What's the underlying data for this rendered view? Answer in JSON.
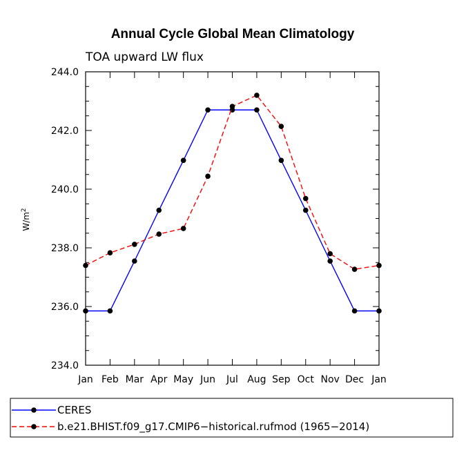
{
  "chart_data": {
    "type": "line",
    "title": "Annual Cycle Global Mean Climatology",
    "subtitle": "TOA upward LW flux",
    "ylabel": "W/m",
    "ylabel_sup": "2",
    "xlabel": "",
    "ylim": [
      234.0,
      244.0
    ],
    "yticks": [
      "234.0",
      "236.0",
      "238.0",
      "240.0",
      "242.0",
      "244.0"
    ],
    "categories": [
      "Jan",
      "Feb",
      "Mar",
      "Apr",
      "May",
      "Jun",
      "Jul",
      "Aug",
      "Sep",
      "Oct",
      "Nov",
      "Dec",
      "Jan"
    ],
    "series": [
      {
        "name": "CERES",
        "color": "#0000ff",
        "dash": "solid",
        "values": [
          235.85,
          235.85,
          237.55,
          239.28,
          240.98,
          242.7,
          242.7,
          242.7,
          240.98,
          239.28,
          237.55,
          235.85,
          235.85
        ]
      },
      {
        "name": "b.e21.BHIST.f09_g17.CMIP6−historical.rufmod (1965−2014)",
        "color": "#ff0000",
        "dash": "dashed",
        "values": [
          237.4,
          237.83,
          238.12,
          238.47,
          238.66,
          240.44,
          242.82,
          243.2,
          242.14,
          239.68,
          237.8,
          237.27,
          237.4
        ]
      }
    ],
    "legend_position": "bottom"
  }
}
